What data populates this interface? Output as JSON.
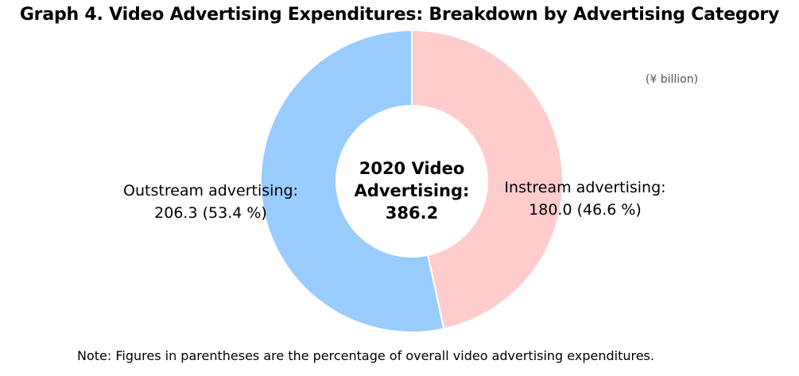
{
  "chart_data": {
    "type": "pie",
    "title": "Graph 4. Video Advertising Expenditures: Breakdown by Advertising Category",
    "unit": "(¥ billion)",
    "center_label": [
      "2020 Video",
      "Advertising:",
      "386.2"
    ],
    "slices": [
      {
        "name": "Instream advertising",
        "value": 180.0,
        "percent": 46.6,
        "label_line1": "Instream advertising:",
        "label_line2": "180.0 (46.6 %)",
        "color": "#FFCCCC"
      },
      {
        "name": "Outstream advertising",
        "value": 206.3,
        "percent": 53.4,
        "label_line1": "Outstream advertising:",
        "label_line2": "206.3 (53.4 %)",
        "color": "#99CCFF"
      }
    ],
    "total": 386.2,
    "start": "top",
    "direction": "clockwise",
    "note": "Note: Figures in parentheses are the percentage of overall video advertising expenditures."
  }
}
